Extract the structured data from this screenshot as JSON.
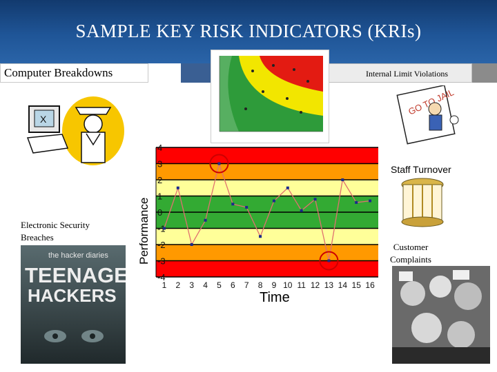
{
  "slide": {
    "title": "SAMPLE KEY RISK INDICATORS (KRIs)",
    "labels": {
      "computer_breakdowns": "Computer Breakdowns",
      "internal_limit_violations": "Internal Limit Violations",
      "electronic_security_breaches": "Electronic Security Breaches",
      "staff_turnover": "Staff Turnover",
      "customer_complaints": "Customer Complaints"
    },
    "book_cover": {
      "line1": "the hacker diaries",
      "line2": "TEENAGE",
      "line3": "HACKERS"
    },
    "goto_sign": "GO TO JAIL",
    "colors": {
      "header": "#1f5597",
      "band_red": "#ff0000",
      "band_orange": "#ff9900",
      "band_yellow": "#ffff99",
      "band_green": "#33aa33",
      "series_line": "#e07070",
      "series_marker": "#1a2a8c",
      "highlight_circle": "#cc0000"
    }
  },
  "chart_data": {
    "type": "line",
    "xlabel": "Time",
    "ylabel": "Performance",
    "x": [
      1,
      2,
      3,
      4,
      5,
      6,
      7,
      8,
      9,
      10,
      11,
      12,
      13,
      14,
      15,
      16
    ],
    "y_ticks": [
      "4",
      "3",
      "2",
      "1",
      "0",
      "-1",
      "-2",
      "-3",
      "-4"
    ],
    "ylim": [
      -4,
      4
    ],
    "series": [
      {
        "values": [
          -1,
          1.5,
          -2,
          -0.5,
          3,
          0.5,
          0.3,
          -1.5,
          0.7,
          1.5,
          0.1,
          0.8,
          -3,
          2,
          0.6,
          0.7
        ]
      }
    ],
    "bands": [
      {
        "from": 3,
        "to": 4,
        "color": "red"
      },
      {
        "from": 2,
        "to": 3,
        "color": "orange"
      },
      {
        "from": 1,
        "to": 2,
        "color": "yellow"
      },
      {
        "from": 0,
        "to": 1,
        "color": "green"
      },
      {
        "from": -1,
        "to": 0,
        "color": "green"
      },
      {
        "from": -2,
        "to": -1,
        "color": "yellow"
      },
      {
        "from": -3,
        "to": -2,
        "color": "orange"
      },
      {
        "from": -4,
        "to": -3,
        "color": "red"
      }
    ],
    "highlighted_points": [
      5,
      13
    ],
    "legend": "none",
    "grid": true
  }
}
